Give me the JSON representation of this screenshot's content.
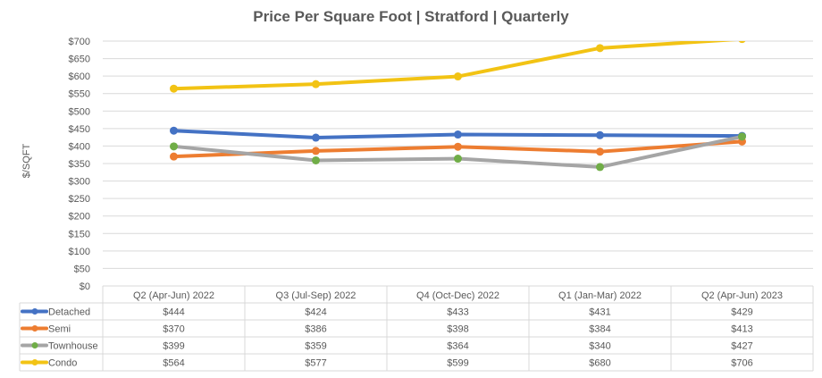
{
  "chart_data": {
    "type": "line",
    "title": "Price Per Square Foot | Stratford | Quarterly",
    "xlabel": "",
    "ylabel": "$/SQFT",
    "ylim": [
      0,
      700
    ],
    "ytick_step": 50,
    "ytick_prefix": "$",
    "grid": true,
    "legend": "data-table",
    "categories": [
      "Q2 (Apr-Jun) 2022",
      "Q3 (Jul-Sep) 2022",
      "Q4 (Oct-Dec) 2022",
      "Q1 (Jan-Mar) 2022",
      "Q2 (Apr-Jun) 2023"
    ],
    "series": [
      {
        "name": "Detached",
        "color": "#4472C4",
        "values": [
          444,
          424,
          433,
          431,
          429
        ]
      },
      {
        "name": "Semi",
        "color": "#ED7D31",
        "values": [
          370,
          386,
          398,
          384,
          413
        ]
      },
      {
        "name": "Townhouse",
        "color": "#A5A5A5",
        "marker_color": "#70AD47",
        "values": [
          399,
          359,
          364,
          340,
          427
        ]
      },
      {
        "name": "Condo",
        "color": "#F2C314",
        "values": [
          564,
          577,
          599,
          680,
          706
        ]
      }
    ]
  }
}
